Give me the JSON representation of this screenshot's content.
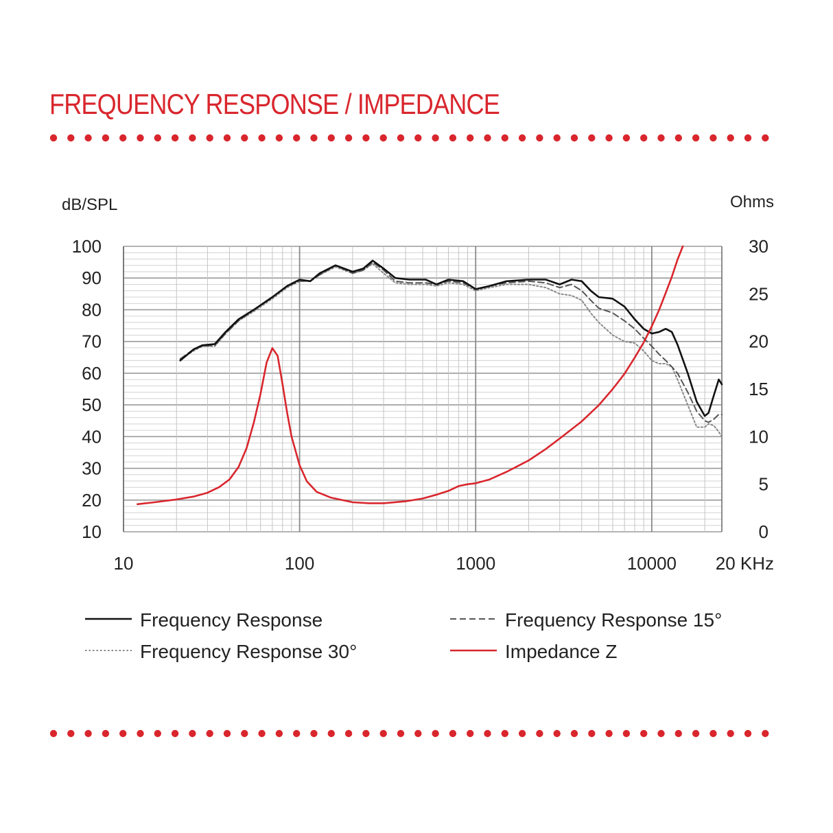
{
  "page": {
    "title": "FREQUENCY RESPONSE / IMPEDANCE",
    "accent_color": "#d9262d"
  },
  "chart_data": {
    "type": "line",
    "x_scale": "log",
    "xlim": [
      10,
      25000
    ],
    "ylim": [
      10,
      100
    ],
    "y2lim": [
      0,
      30
    ],
    "ylabel": "dB/SPL",
    "y2label": "Ohms",
    "x_tick_labels": [
      "10",
      "100",
      "1000",
      "10000",
      "20 KHz"
    ],
    "x_ticks": [
      10,
      100,
      1000,
      10000,
      20000
    ],
    "y_ticks": [
      100,
      90,
      80,
      70,
      60,
      50,
      40,
      30,
      20,
      10
    ],
    "y2_ticks": [
      30,
      25,
      20,
      15,
      10,
      5,
      0
    ],
    "grid": true,
    "legend_position": "bottom",
    "series": [
      {
        "name": "Frequency Response",
        "axis": "left",
        "color": "#111111",
        "style": "solid",
        "points": [
          [
            21,
            64
          ],
          [
            25,
            67.5
          ],
          [
            28,
            68.8
          ],
          [
            33,
            69.2
          ],
          [
            38,
            73
          ],
          [
            45,
            77
          ],
          [
            55,
            80
          ],
          [
            70,
            84
          ],
          [
            85,
            87.5
          ],
          [
            100,
            89.5
          ],
          [
            115,
            89
          ],
          [
            130,
            91.5
          ],
          [
            160,
            94
          ],
          [
            200,
            92
          ],
          [
            230,
            93
          ],
          [
            260,
            95.5
          ],
          [
            300,
            93
          ],
          [
            350,
            90
          ],
          [
            420,
            89.5
          ],
          [
            520,
            89.5
          ],
          [
            600,
            88
          ],
          [
            700,
            89.5
          ],
          [
            850,
            89
          ],
          [
            1000,
            86.5
          ],
          [
            1200,
            87.5
          ],
          [
            1500,
            89
          ],
          [
            2000,
            89.5
          ],
          [
            2500,
            89.5
          ],
          [
            3000,
            88
          ],
          [
            3500,
            89.5
          ],
          [
            4000,
            89
          ],
          [
            4500,
            86
          ],
          [
            5000,
            84
          ],
          [
            6000,
            83.5
          ],
          [
            7000,
            81
          ],
          [
            8000,
            77
          ],
          [
            9000,
            74
          ],
          [
            10000,
            72.5
          ],
          [
            11000,
            73
          ],
          [
            12000,
            74
          ],
          [
            13000,
            73
          ],
          [
            14000,
            69
          ],
          [
            16000,
            60
          ],
          [
            18000,
            51
          ],
          [
            20000,
            46.5
          ],
          [
            21000,
            47.5
          ],
          [
            22500,
            53
          ],
          [
            24000,
            58
          ],
          [
            25000,
            56.5
          ]
        ]
      },
      {
        "name": "Frequency Response 15°",
        "axis": "left",
        "color": "#555555",
        "style": "dashed",
        "points": [
          [
            21,
            64.5
          ],
          [
            25,
            67.5
          ],
          [
            28,
            68.5
          ],
          [
            33,
            68.8
          ],
          [
            38,
            72.5
          ],
          [
            45,
            76.5
          ],
          [
            55,
            80
          ],
          [
            70,
            84
          ],
          [
            85,
            87.5
          ],
          [
            100,
            89
          ],
          [
            115,
            89
          ],
          [
            130,
            91
          ],
          [
            160,
            94
          ],
          [
            200,
            91.5
          ],
          [
            230,
            92.5
          ],
          [
            260,
            95
          ],
          [
            300,
            92.5
          ],
          [
            350,
            89
          ],
          [
            420,
            88.5
          ],
          [
            520,
            88.5
          ],
          [
            600,
            88
          ],
          [
            700,
            89
          ],
          [
            850,
            88.5
          ],
          [
            1000,
            86.5
          ],
          [
            1200,
            87.5
          ],
          [
            1500,
            88.5
          ],
          [
            2000,
            89
          ],
          [
            2500,
            88.5
          ],
          [
            3000,
            87
          ],
          [
            3500,
            88
          ],
          [
            4000,
            86
          ],
          [
            4500,
            83
          ],
          [
            5000,
            80.5
          ],
          [
            6000,
            79
          ],
          [
            7000,
            76.5
          ],
          [
            8000,
            74
          ],
          [
            9000,
            71
          ],
          [
            10000,
            68.5
          ],
          [
            11000,
            66
          ],
          [
            12000,
            64
          ],
          [
            13000,
            62
          ],
          [
            14000,
            60
          ],
          [
            16000,
            54
          ],
          [
            18000,
            48
          ],
          [
            20000,
            45
          ],
          [
            21000,
            44.5
          ],
          [
            22500,
            45.5
          ],
          [
            24000,
            47
          ],
          [
            25000,
            47
          ]
        ]
      },
      {
        "name": "Frequency Response 30°",
        "axis": "left",
        "color": "#888888",
        "style": "dotted",
        "points": [
          [
            21,
            64.5
          ],
          [
            25,
            67
          ],
          [
            28,
            68.5
          ],
          [
            33,
            68.5
          ],
          [
            38,
            72.5
          ],
          [
            45,
            76.5
          ],
          [
            55,
            79.5
          ],
          [
            70,
            83.5
          ],
          [
            85,
            87
          ],
          [
            100,
            89
          ],
          [
            115,
            89
          ],
          [
            130,
            91
          ],
          [
            160,
            93.5
          ],
          [
            200,
            91.5
          ],
          [
            230,
            92.5
          ],
          [
            260,
            94.5
          ],
          [
            300,
            91.5
          ],
          [
            350,
            88.5
          ],
          [
            420,
            88
          ],
          [
            520,
            88
          ],
          [
            600,
            87.5
          ],
          [
            700,
            88.5
          ],
          [
            850,
            88
          ],
          [
            1000,
            86
          ],
          [
            1200,
            87
          ],
          [
            1500,
            88
          ],
          [
            2000,
            88
          ],
          [
            2500,
            87
          ],
          [
            3000,
            85
          ],
          [
            3500,
            84.5
          ],
          [
            4000,
            83
          ],
          [
            4500,
            79
          ],
          [
            5000,
            76
          ],
          [
            6000,
            72
          ],
          [
            7000,
            70
          ],
          [
            8000,
            69.5
          ],
          [
            9000,
            67
          ],
          [
            10000,
            64
          ],
          [
            11000,
            63
          ],
          [
            12000,
            63
          ],
          [
            13000,
            62
          ],
          [
            14000,
            58
          ],
          [
            16000,
            50
          ],
          [
            18000,
            43
          ],
          [
            20000,
            43
          ],
          [
            21000,
            44
          ],
          [
            22500,
            43.5
          ],
          [
            24000,
            41.5
          ],
          [
            25000,
            40
          ]
        ]
      },
      {
        "name": "Impedance Z",
        "axis": "right",
        "color": "#d9262d",
        "style": "solid",
        "points": [
          [
            12,
            2.9
          ],
          [
            15,
            3.1
          ],
          [
            20,
            3.4
          ],
          [
            25,
            3.7
          ],
          [
            30,
            4.1
          ],
          [
            35,
            4.7
          ],
          [
            40,
            5.5
          ],
          [
            45,
            6.8
          ],
          [
            50,
            8.8
          ],
          [
            55,
            11.5
          ],
          [
            60,
            14.5
          ],
          [
            65,
            17.8
          ],
          [
            70,
            19.3
          ],
          [
            75,
            18.5
          ],
          [
            80,
            15.5
          ],
          [
            85,
            12.5
          ],
          [
            90,
            10
          ],
          [
            100,
            7
          ],
          [
            110,
            5.3
          ],
          [
            125,
            4.2
          ],
          [
            150,
            3.6
          ],
          [
            200,
            3.1
          ],
          [
            250,
            3
          ],
          [
            300,
            3
          ],
          [
            400,
            3.2
          ],
          [
            500,
            3.5
          ],
          [
            600,
            3.9
          ],
          [
            700,
            4.3
          ],
          [
            800,
            4.8
          ],
          [
            900,
            5.0
          ],
          [
            1000,
            5.1
          ],
          [
            1200,
            5.5
          ],
          [
            1500,
            6.3
          ],
          [
            2000,
            7.5
          ],
          [
            2500,
            8.7
          ],
          [
            3000,
            9.8
          ],
          [
            4000,
            11.6
          ],
          [
            5000,
            13.3
          ],
          [
            6000,
            15
          ],
          [
            7000,
            16.6
          ],
          [
            8000,
            18.3
          ],
          [
            9000,
            19.9
          ],
          [
            10000,
            21.6
          ],
          [
            11000,
            23.3
          ],
          [
            12000,
            25.1
          ],
          [
            13000,
            26.8
          ],
          [
            14000,
            28.6
          ],
          [
            15000,
            30
          ]
        ]
      }
    ]
  }
}
